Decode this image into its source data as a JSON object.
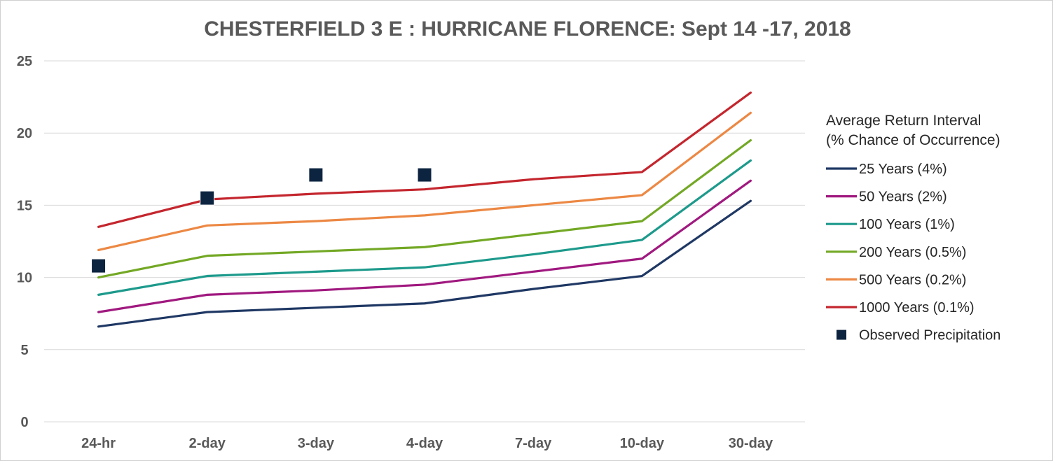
{
  "chart_data": {
    "type": "line",
    "title": "CHESTERFIELD 3 E : HURRICANE FLORENCE: Sept 14 -17, 2018",
    "xlabel": "",
    "ylabel": "",
    "categories": [
      "24-hr",
      "2-day",
      "3-day",
      "4-day",
      "7-day",
      "10-day",
      "30-day"
    ],
    "ylim": [
      0,
      25
    ],
    "yticks": [
      0,
      5,
      10,
      15,
      20,
      25
    ],
    "grid": true,
    "legend_placement": "right",
    "legend_title": [
      "Average Return Interval",
      "(% Chance of Occurrence)"
    ],
    "series": [
      {
        "name": "25 Years (4%)",
        "color": "#1f3864",
        "values": [
          6.6,
          7.6,
          7.9,
          8.2,
          9.2,
          10.1,
          15.3
        ]
      },
      {
        "name": "50 Years (2%)",
        "color": "#a0197f",
        "values": [
          7.6,
          8.8,
          9.1,
          9.5,
          10.4,
          11.3,
          16.7
        ]
      },
      {
        "name": "100 Years (1%)",
        "color": "#1d9a8c",
        "values": [
          8.8,
          10.1,
          10.4,
          10.7,
          11.6,
          12.6,
          18.1
        ]
      },
      {
        "name": "200 Years (0.5%)",
        "color": "#73a825",
        "values": [
          10.0,
          11.5,
          11.8,
          12.1,
          13.0,
          13.9,
          19.5
        ]
      },
      {
        "name": "500 Years (0.2%)",
        "color": "#ec8844",
        "values": [
          11.9,
          13.6,
          13.9,
          14.3,
          15.0,
          15.7,
          21.4
        ]
      },
      {
        "name": "1000 Years (0.1%)",
        "color": "#c4262e",
        "values": [
          13.5,
          15.4,
          15.8,
          16.1,
          16.8,
          17.3,
          22.8
        ]
      }
    ],
    "observed": {
      "name": "Observed Precipitation",
      "color": "#0d2440",
      "values": [
        10.8,
        15.5,
        17.1,
        17.1,
        null,
        null,
        null
      ]
    }
  }
}
